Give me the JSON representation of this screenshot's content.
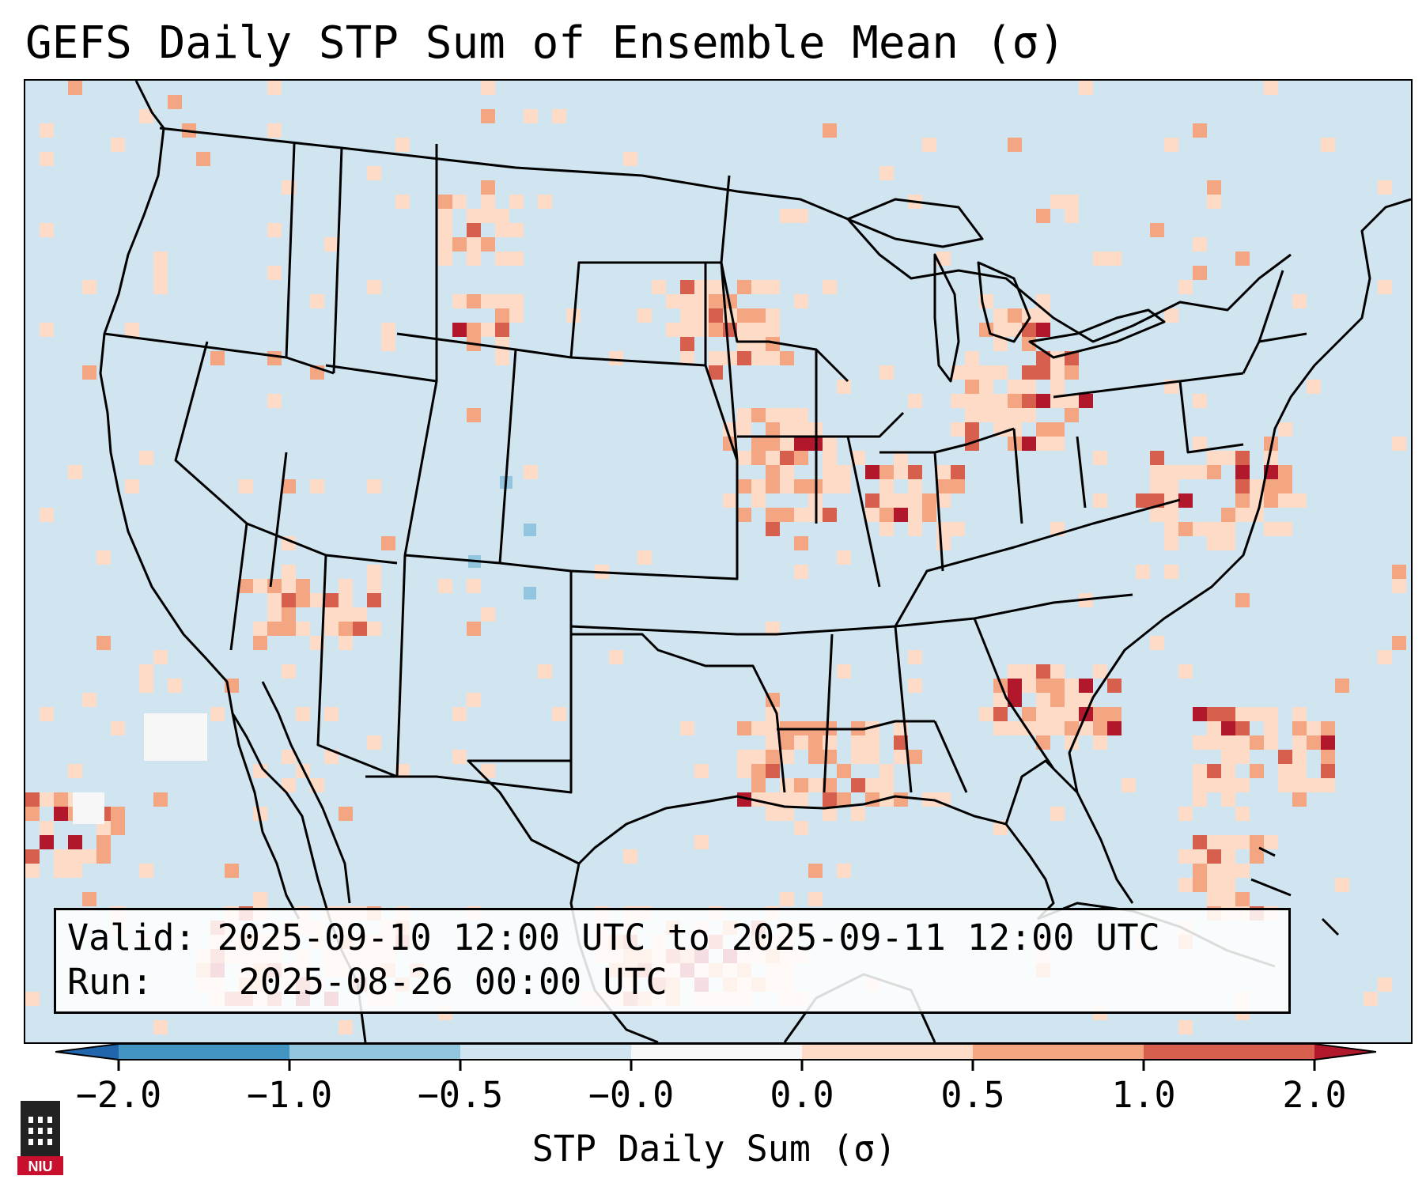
{
  "title": "GEFS Daily STP Sum of Ensemble Mean (σ)",
  "info": {
    "valid_label": "Valid:",
    "valid_value": "2025-09-10 12:00 UTC to 2025-09-11 12:00 UTC",
    "run_label": "Run:",
    "run_value": "2025-08-26 00:00 UTC"
  },
  "colorbar": {
    "label": "STP Daily Sum (σ)",
    "ticks": [
      "−2.0",
      "−1.0",
      "−0.5",
      "−0.0",
      "0.0",
      "0.5",
      "1.0",
      "2.0"
    ],
    "colors": [
      "#4393c3",
      "#92c5de",
      "#d1e5f0",
      "#f7f7f7",
      "#fddbc7",
      "#f4a582",
      "#d6604d"
    ],
    "under_color": "#2166ac",
    "over_color": "#b2182b"
  },
  "map": {
    "background_color": "#d1e5f0",
    "region": "Contiguous United States, southern Canada, northern Mexico, Gulf of Mexico, Caribbean",
    "projection": "Lambert Conformal"
  },
  "logo": {
    "text": "NIU"
  }
}
